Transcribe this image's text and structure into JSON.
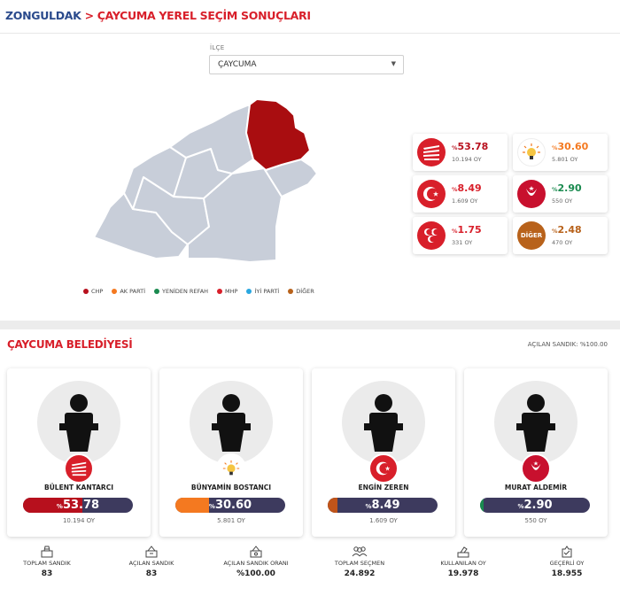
{
  "breadcrumb": {
    "province": "ZONGULDAK",
    "separator": ">",
    "page": "ÇAYCUMA YEREL SEÇİM SONUÇLARI"
  },
  "district_select": {
    "label": "İLÇE",
    "value": "ÇAYCUMA"
  },
  "legend": [
    {
      "label": "CHP",
      "color": "#b7101d"
    },
    {
      "label": "AK PARTİ",
      "color": "#f47920"
    },
    {
      "label": "YENİDEN REFAH",
      "color": "#1a8a4f"
    },
    {
      "label": "MHP",
      "color": "#d81f2a"
    },
    {
      "label": "İYİ PARTİ",
      "color": "#2aa7e0"
    },
    {
      "label": "DİĞER",
      "color": "#b8621b"
    }
  ],
  "party_results": [
    {
      "party": "CHP",
      "prefix": "%",
      "pct": "53.78",
      "votes": "10.194 OY",
      "color": "#b7101d",
      "icon": "chp-six-arrows-icon"
    },
    {
      "party": "AK PARTİ",
      "prefix": "%",
      "pct": "30.60",
      "votes": "5.801 OY",
      "color": "#f47920",
      "icon": "ak-parti-bulb-icon"
    },
    {
      "party": "MHP",
      "prefix": "%",
      "pct": "8.49",
      "votes": "1.609 OY",
      "color": "#d81f2a",
      "icon": "mhp-crescent-star-icon"
    },
    {
      "party": "YENİDEN REFAH",
      "prefix": "%",
      "pct": "2.90",
      "votes": "550 OY",
      "color": "#1a8a4f",
      "icon": "yeniden-refah-icon"
    },
    {
      "party": "BBP",
      "prefix": "%",
      "pct": "1.75",
      "votes": "331 OY",
      "color": "#d81f2a",
      "icon": "bbp-three-crescents-icon"
    },
    {
      "party": "DİĞER",
      "prefix": "%",
      "pct": "2.48",
      "votes": "470 OY",
      "color": "#b8621b",
      "icon": "diger-icon",
      "icon_text": "DİĞER"
    }
  ],
  "municipality": {
    "title": "ÇAYCUMA BELEDİYESİ",
    "opened_ballot": "AÇILAN SANDIK: %100.00"
  },
  "candidates": [
    {
      "name": "BÜLENT KANTARCI",
      "prefix": "%",
      "pct": "53.78",
      "share": 0.5378,
      "votes": "10.194 OY",
      "color": "#b7101d",
      "party": "CHP"
    },
    {
      "name": "BÜNYAMİN BOSTANCI",
      "prefix": "%",
      "pct": "30.60",
      "share": 0.306,
      "votes": "5.801 OY",
      "color": "#f47920",
      "party": "AK PARTİ"
    },
    {
      "name": "ENGİN ZEREN",
      "prefix": "%",
      "pct": "8.49",
      "share": 0.0849,
      "votes": "1.609 OY",
      "color": "#c0541a",
      "party": "MHP"
    },
    {
      "name": "MURAT ALDEMİR",
      "prefix": "%",
      "pct": "2.90",
      "share": 0.029,
      "votes": "550 OY",
      "color": "#1a8a4f",
      "party": "YENİDEN REFAH"
    }
  ],
  "stats": [
    {
      "label": "TOPLAM SANDIK",
      "value": "83",
      "icon": "ballot-box-icon"
    },
    {
      "label": "AÇILAN SANDIK",
      "value": "83",
      "icon": "opened-ballot-box-icon"
    },
    {
      "label": "AÇILAN SANDIK ORANI",
      "value": "%100.00",
      "icon": "ballot-ratio-icon"
    },
    {
      "label": "TOPLAM SEÇMEN",
      "value": "24.892",
      "icon": "voters-icon"
    },
    {
      "label": "KULLANILAN OY",
      "value": "19.978",
      "icon": "cast-vote-icon"
    },
    {
      "label": "GEÇERLİ OY",
      "value": "18.955",
      "icon": "valid-vote-icon"
    }
  ]
}
